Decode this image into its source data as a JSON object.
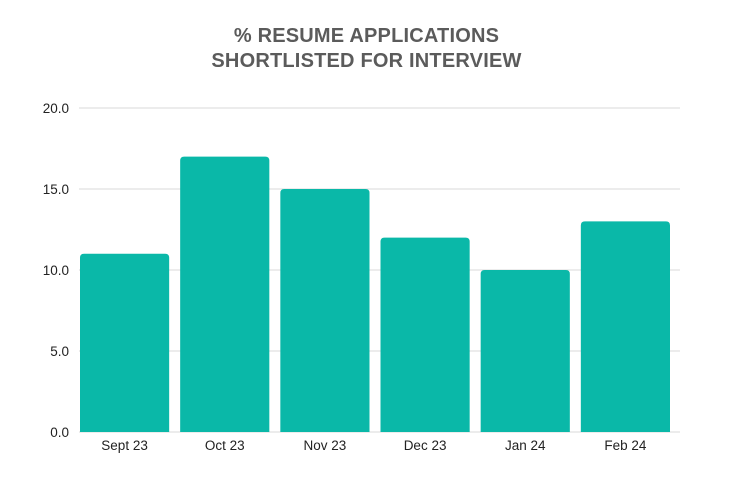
{
  "title_lines": [
    "% RESUME APPLICATIONS",
    "SHORTLISTED FOR INTERVIEW"
  ],
  "chart_data": {
    "type": "bar",
    "title": "% RESUME APPLICATIONS SHORTLISTED FOR INTERVIEW",
    "categories": [
      "Sept 23",
      "Oct 23",
      "Nov 23",
      "Dec 23",
      "Jan 24",
      "Feb 24"
    ],
    "values": [
      11,
      17,
      15,
      12,
      10,
      13
    ],
    "xlabel": "",
    "ylabel": "",
    "ylim": [
      0,
      20
    ],
    "yticks": [
      "0.0",
      "5.0",
      "10.0",
      "15.0",
      "20.0"
    ],
    "grid": true,
    "legend": "none",
    "bar_color": "#0ab8a8",
    "grid_color": "#d9d9d9"
  }
}
